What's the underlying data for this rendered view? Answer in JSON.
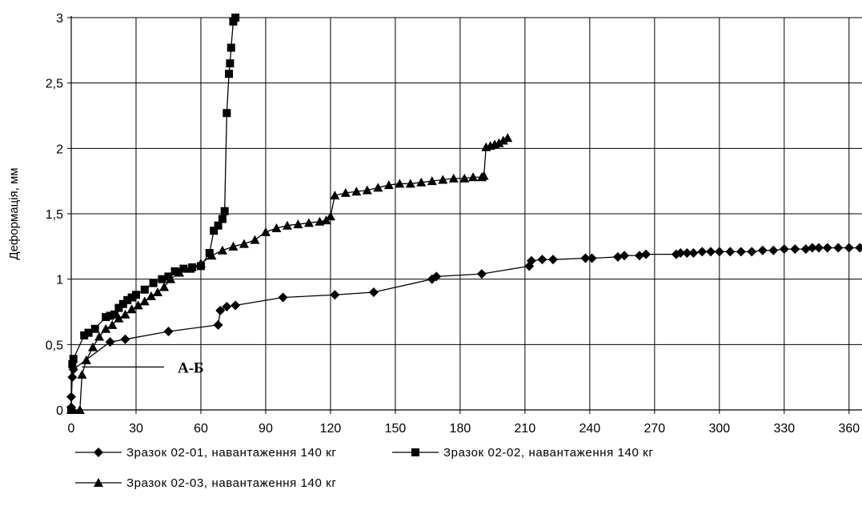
{
  "chart_data": {
    "type": "line",
    "title": "",
    "xlabel": "",
    "ylabel": "Деформація, мм",
    "xlim": [
      0,
      366
    ],
    "ylim": [
      0,
      3
    ],
    "x_ticks": [
      0,
      30,
      60,
      90,
      120,
      150,
      180,
      210,
      240,
      270,
      300,
      330,
      360
    ],
    "y_ticks": [
      0,
      0.5,
      1,
      1.5,
      2,
      2.5,
      3
    ],
    "x_tick_labels": [
      "0",
      "30",
      "60",
      "90",
      "120",
      "150",
      "180",
      "210",
      "240",
      "270",
      "300",
      "330",
      "360"
    ],
    "y_tick_labels": [
      "0",
      "0,5",
      "1",
      "1,5",
      "2",
      "2,5",
      "3"
    ],
    "grid": true,
    "legend_position": "bottom",
    "annotation": {
      "text": "А-Б",
      "x": 5,
      "y": 0.31
    },
    "series": [
      {
        "name": "Зразок 02-01, навантаження 140 кг",
        "marker": "diamond",
        "color": "#000000",
        "x": [
          0,
          0,
          0.5,
          1,
          18,
          25,
          45,
          68,
          69,
          72,
          76,
          98,
          122,
          140,
          167,
          169,
          190,
          212,
          213,
          218,
          223,
          238,
          241,
          253,
          256,
          263,
          266,
          280,
          282,
          285,
          288,
          292,
          296,
          300,
          305,
          310,
          315,
          320,
          325,
          330,
          335,
          340,
          343,
          346,
          350,
          355,
          360,
          365
        ],
        "y": [
          0.02,
          0.1,
          0.25,
          0.31,
          0.52,
          0.54,
          0.6,
          0.65,
          0.76,
          0.79,
          0.8,
          0.86,
          0.88,
          0.9,
          1.0,
          1.02,
          1.04,
          1.1,
          1.14,
          1.15,
          1.15,
          1.16,
          1.16,
          1.17,
          1.18,
          1.18,
          1.19,
          1.19,
          1.2,
          1.2,
          1.2,
          1.21,
          1.21,
          1.21,
          1.21,
          1.21,
          1.21,
          1.22,
          1.22,
          1.23,
          1.23,
          1.23,
          1.24,
          1.24,
          1.24,
          1.24,
          1.24,
          1.24
        ]
      },
      {
        "name": "Зразок 02-02, навантаження 140 кг",
        "marker": "square",
        "color": "#000000",
        "x": [
          0,
          0.5,
          1,
          6,
          8,
          11,
          16,
          18,
          20,
          22,
          24,
          26,
          28,
          30,
          34,
          38,
          42,
          45,
          48,
          52,
          56,
          60,
          64,
          66,
          68,
          70,
          71,
          72,
          73,
          73.5,
          74,
          75,
          76
        ],
        "y": [
          0.0,
          0.35,
          0.39,
          0.57,
          0.59,
          0.62,
          0.71,
          0.72,
          0.73,
          0.78,
          0.81,
          0.84,
          0.86,
          0.88,
          0.92,
          0.97,
          1.0,
          1.02,
          1.06,
          1.08,
          1.09,
          1.1,
          1.2,
          1.37,
          1.41,
          1.46,
          1.52,
          2.27,
          2.57,
          2.65,
          2.77,
          2.97,
          3.0
        ]
      },
      {
        "name": "Зразок 02-03, навантаження 140 кг",
        "marker": "triangle",
        "color": "#000000",
        "x": [
          0,
          1,
          4,
          5,
          7,
          10,
          13,
          16,
          19,
          22,
          25,
          28,
          31,
          34,
          37,
          40,
          43,
          46,
          50,
          55,
          60,
          65,
          70,
          75,
          80,
          85,
          90,
          95,
          100,
          105,
          110,
          115,
          118,
          120,
          122,
          127,
          132,
          137,
          142,
          147,
          152,
          157,
          162,
          167,
          172,
          177,
          182,
          186,
          190,
          191,
          192,
          194,
          196,
          198,
          200,
          202
        ],
        "y": [
          0.0,
          0.0,
          0.0,
          0.27,
          0.38,
          0.48,
          0.56,
          0.62,
          0.65,
          0.7,
          0.73,
          0.77,
          0.8,
          0.83,
          0.87,
          0.9,
          0.94,
          1.0,
          1.05,
          1.08,
          1.12,
          1.18,
          1.22,
          1.25,
          1.27,
          1.3,
          1.36,
          1.39,
          1.41,
          1.42,
          1.43,
          1.44,
          1.45,
          1.48,
          1.64,
          1.66,
          1.67,
          1.68,
          1.7,
          1.72,
          1.73,
          1.73,
          1.74,
          1.75,
          1.76,
          1.77,
          1.77,
          1.78,
          1.78,
          1.79,
          2.01,
          2.02,
          2.03,
          2.04,
          2.06,
          2.08
        ]
      }
    ]
  }
}
